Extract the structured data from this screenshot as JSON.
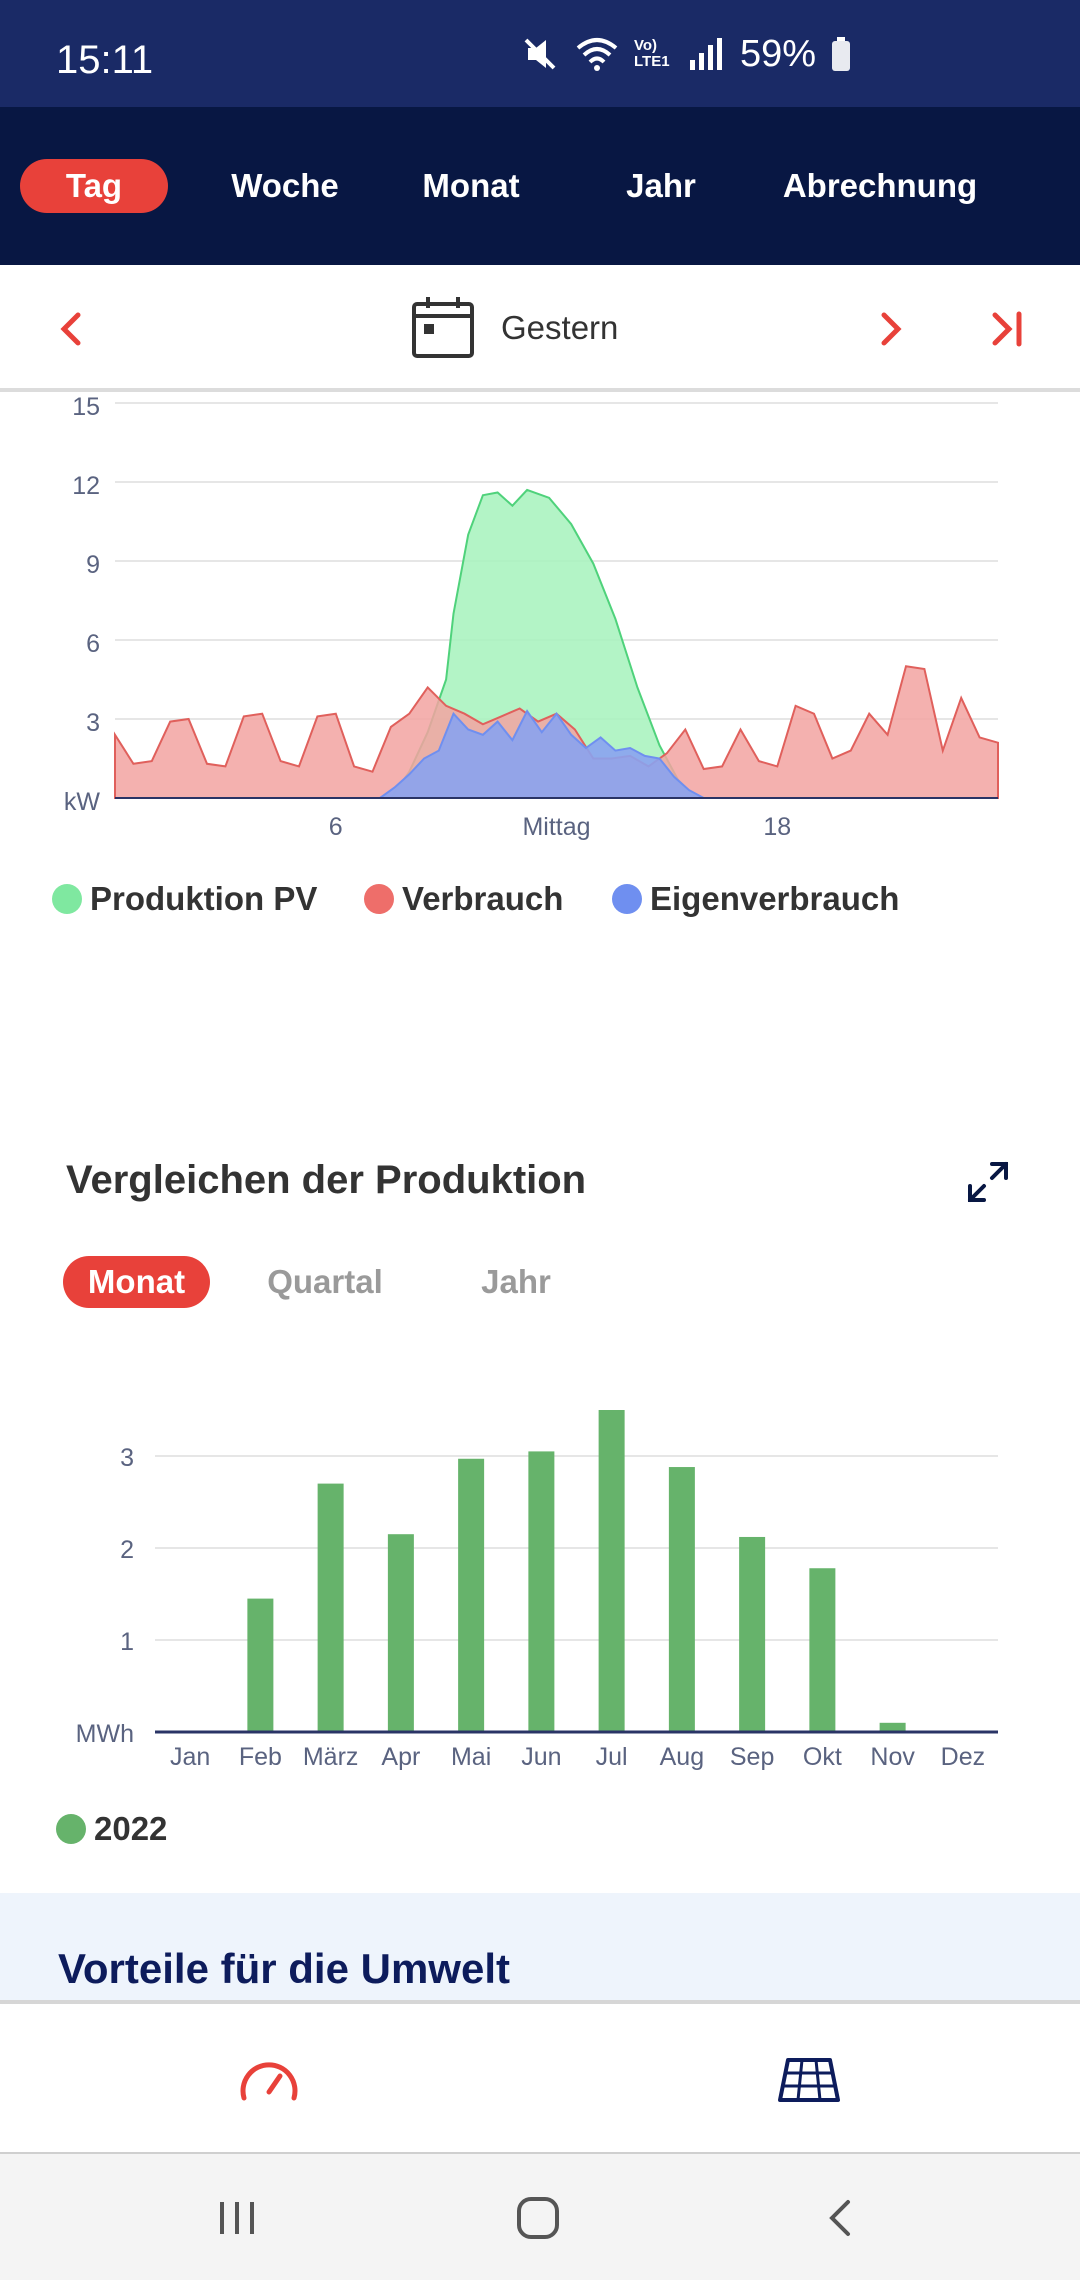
{
  "status_bar": {
    "time": "15:11",
    "battery": "59%",
    "network": "Vo) LTE1"
  },
  "tabs": [
    "Tag",
    "Woche",
    "Monat",
    "Jahr",
    "Abrechnung"
  ],
  "date_nav": {
    "label": "Gestern"
  },
  "colors": {
    "accent": "#e8413a",
    "navy": "#081743",
    "pv": "#2ecc71",
    "verbrauch": "#e8716d",
    "eigen": "#6f8ff0",
    "bar": "#66b36b"
  },
  "icons": [
    "mute-icon",
    "wifi-icon",
    "signal-icon",
    "battery-icon",
    "chevron-left-icon",
    "calendar-icon",
    "chevron-right-icon",
    "skip-to-end-icon",
    "expand-icon",
    "speedometer-icon",
    "solar-panel-icon",
    "recent-apps-icon",
    "home-icon",
    "back-icon"
  ],
  "chart_data": [
    {
      "type": "area",
      "ylabel": "kW",
      "ylim": [
        0,
        15
      ],
      "yticks": [
        "15",
        "12",
        "9",
        "6",
        "3",
        "kW"
      ],
      "xticks": [
        "6",
        "Mittag",
        "18"
      ],
      "x_range": [
        0,
        24
      ],
      "series": [
        {
          "name": "Produktion PV",
          "color": "#2ecc71",
          "x": [
            0,
            7.5,
            8,
            8.5,
            9,
            9.2,
            9.6,
            10,
            10.4,
            10.8,
            11.2,
            11.8,
            12.4,
            13,
            13.6,
            14.2,
            14.8,
            15.3,
            15.8,
            24
          ],
          "y": [
            0,
            0,
            1,
            2.5,
            4.5,
            7,
            10,
            11.5,
            11.6,
            11.1,
            11.7,
            11.4,
            10.4,
            8.9,
            6.8,
            4.2,
            2,
            0.7,
            0,
            0
          ]
        },
        {
          "name": "Verbrauch",
          "color": "#e8716d",
          "x": [
            0,
            0.5,
            1,
            1.5,
            2,
            2.5,
            3,
            3.5,
            4,
            4.5,
            5,
            5.5,
            6,
            6.5,
            7,
            7.5,
            8,
            8.5,
            9,
            9.5,
            10,
            10.5,
            11,
            11.5,
            12,
            12.5,
            13,
            13.5,
            14,
            14.5,
            15,
            15.5,
            16,
            16.5,
            17,
            17.5,
            18,
            18.5,
            19,
            19.5,
            20,
            20.5,
            21,
            21.5,
            22,
            22.5,
            23,
            23.5,
            24
          ],
          "y": [
            2.4,
            1.3,
            1.4,
            2.9,
            3,
            1.3,
            1.2,
            3.1,
            3.2,
            1.4,
            1.2,
            3.1,
            3.2,
            1.2,
            1,
            2.7,
            3.2,
            4.2,
            3.5,
            3.2,
            2.8,
            3.1,
            3.4,
            2.9,
            3.2,
            2.6,
            1.5,
            1.5,
            1.6,
            1.2,
            1.7,
            2.6,
            1.1,
            1.2,
            2.6,
            1.4,
            1.2,
            3.5,
            3.2,
            1.5,
            1.8,
            3.2,
            2.4,
            5,
            4.9,
            1.8,
            3.8,
            2.3,
            2.1
          ]
        },
        {
          "name": "Eigenverbrauch",
          "color": "#6f8ff0",
          "x": [
            0,
            7.2,
            7.6,
            8,
            8.4,
            8.8,
            9.2,
            9.6,
            10,
            10.4,
            10.8,
            11.2,
            11.6,
            12,
            12.4,
            12.8,
            13.2,
            13.6,
            14,
            14.4,
            14.8,
            15.2,
            15.6,
            16,
            24
          ],
          "y": [
            0,
            0,
            0.4,
            0.9,
            1.5,
            1.8,
            3.2,
            2.6,
            2.4,
            2.9,
            2.2,
            3.3,
            2.5,
            3.2,
            2.4,
            1.9,
            2.3,
            1.8,
            1.9,
            1.6,
            1.5,
            0.8,
            0.3,
            0,
            0
          ]
        }
      ]
    },
    {
      "type": "bar",
      "title": "Vergleichen der Produktion",
      "ylabel": "MWh",
      "ylim": [
        0,
        3.5
      ],
      "yticks": [
        "3",
        "2",
        "1",
        "MWh"
      ],
      "categories": [
        "Jan",
        "Feb",
        "März",
        "Apr",
        "Mai",
        "Jun",
        "Jul",
        "Aug",
        "Sep",
        "Okt",
        "Nov",
        "Dez"
      ],
      "series": [
        {
          "name": "2022",
          "color": "#66b36b",
          "values": [
            0,
            1.45,
            2.7,
            2.15,
            2.97,
            3.05,
            3.5,
            2.88,
            2.12,
            1.78,
            0.1,
            0
          ]
        }
      ]
    }
  ],
  "compare": {
    "title": "Vergleichen der Produktion",
    "pills": [
      "Monat",
      "Quartal",
      "Jahr"
    ]
  },
  "umwelt": {
    "title": "Vorteile für die Umwelt"
  }
}
